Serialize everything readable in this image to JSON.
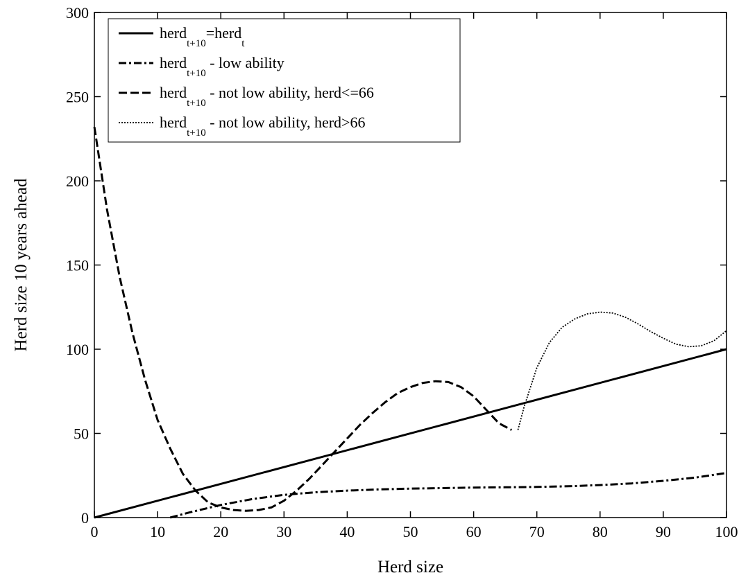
{
  "chart_data": {
    "type": "line",
    "xlabel": "Herd size",
    "ylabel": "Herd size 10 years ahead",
    "xlim": [
      0,
      100
    ],
    "ylim": [
      0,
      300
    ],
    "xticks": [
      0,
      10,
      20,
      30,
      40,
      50,
      60,
      70,
      80,
      90,
      100
    ],
    "yticks": [
      0,
      50,
      100,
      150,
      200,
      250,
      300
    ],
    "grid": false,
    "legend_position": "top-left",
    "series": [
      {
        "name": "herd_t+10=herd_t",
        "legend_parts": [
          "herd",
          "t+10",
          "=herd",
          "t",
          ""
        ],
        "style": "solid",
        "x": [
          0,
          100
        ],
        "y": [
          0,
          100
        ]
      },
      {
        "name": "herd_t+10 - low ability",
        "legend_parts": [
          "herd",
          "t+10",
          " - low ability"
        ],
        "style": "dashdot",
        "x": [
          12,
          15,
          20,
          25,
          30,
          35,
          40,
          45,
          50,
          55,
          60,
          65,
          70,
          75,
          80,
          85,
          90,
          95,
          100
        ],
        "y": [
          0,
          3,
          7.5,
          11,
          13.5,
          15,
          16,
          16.7,
          17.2,
          17.5,
          17.8,
          18,
          18.2,
          18.6,
          19.3,
          20.3,
          21.8,
          23.7,
          26.5
        ]
      },
      {
        "name": "herd_t+10 - not low ability, herd<=66",
        "legend_parts": [
          "herd",
          "t+10",
          " - not low ability, herd<=66"
        ],
        "style": "dashed",
        "x": [
          0,
          2,
          4,
          6,
          8,
          10,
          12,
          14,
          16,
          18,
          20,
          22,
          24,
          26,
          28,
          30,
          32,
          34,
          36,
          38,
          40,
          42,
          44,
          46,
          48,
          50,
          52,
          54,
          56,
          58,
          60,
          62,
          64,
          66
        ],
        "y": [
          232,
          183,
          143,
          110,
          82,
          58,
          41,
          26,
          16,
          9,
          6,
          4.5,
          4,
          4.5,
          6,
          10,
          16,
          23,
          31,
          39,
          47,
          55,
          62,
          68.5,
          74,
          77.5,
          80,
          81,
          80.5,
          77.5,
          72,
          64,
          56,
          52
        ]
      },
      {
        "name": "herd_t+10 - not low ability, herd>66",
        "legend_parts": [
          "herd",
          "t+10",
          " - not low ability, herd>66"
        ],
        "style": "dotted",
        "x": [
          67,
          68,
          70,
          72,
          74,
          76,
          78,
          80,
          82,
          84,
          86,
          88,
          90,
          92,
          94,
          96,
          98,
          100
        ],
        "y": [
          52,
          66,
          89,
          104,
          113,
          118,
          121,
          122,
          121.5,
          119,
          115,
          110.5,
          106.5,
          103,
          101.5,
          102,
          105,
          111
        ]
      }
    ]
  }
}
